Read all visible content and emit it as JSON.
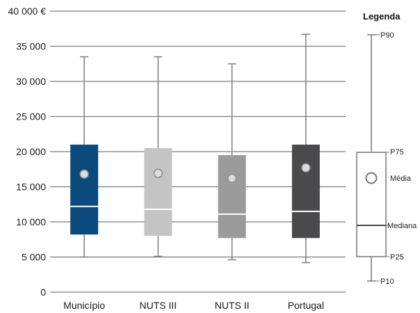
{
  "chart_data": {
    "type": "boxplot",
    "ylim": [
      0,
      40000
    ],
    "yticks": [
      0,
      5000,
      10000,
      15000,
      20000,
      25000,
      30000,
      35000,
      40000
    ],
    "ytick_labels": [
      "0",
      "5 000",
      "10 000",
      "15 000",
      "20 000",
      "25 000",
      "30 000",
      "35 000",
      "40 000 €"
    ],
    "grid": true,
    "categories": [
      "Município",
      "NUTS III",
      "NUTS II",
      "Portugal"
    ],
    "colors": [
      "#0a4a7d",
      "#c4c4c4",
      "#9b9b9b",
      "#4a4a4d"
    ],
    "boxes": [
      {
        "p10": 5000,
        "p25": 8200,
        "median": 12200,
        "p75": 21000,
        "p90": 33500,
        "mean": 16800
      },
      {
        "p10": 5100,
        "p25": 8000,
        "median": 11800,
        "p75": 20500,
        "p90": 33500,
        "mean": 16900
      },
      {
        "p10": 4600,
        "p25": 7700,
        "median": 11100,
        "p75": 19500,
        "p90": 32500,
        "mean": 16200
      },
      {
        "p10": 4200,
        "p25": 7700,
        "median": 11500,
        "p75": 21000,
        "p90": 36700,
        "mean": 17700
      }
    ]
  },
  "legend": {
    "title": "Legenda",
    "p90": "P90",
    "p75": "P75",
    "mean": "Média",
    "median": "Mediana",
    "p25": "P25",
    "p10": "P10"
  }
}
